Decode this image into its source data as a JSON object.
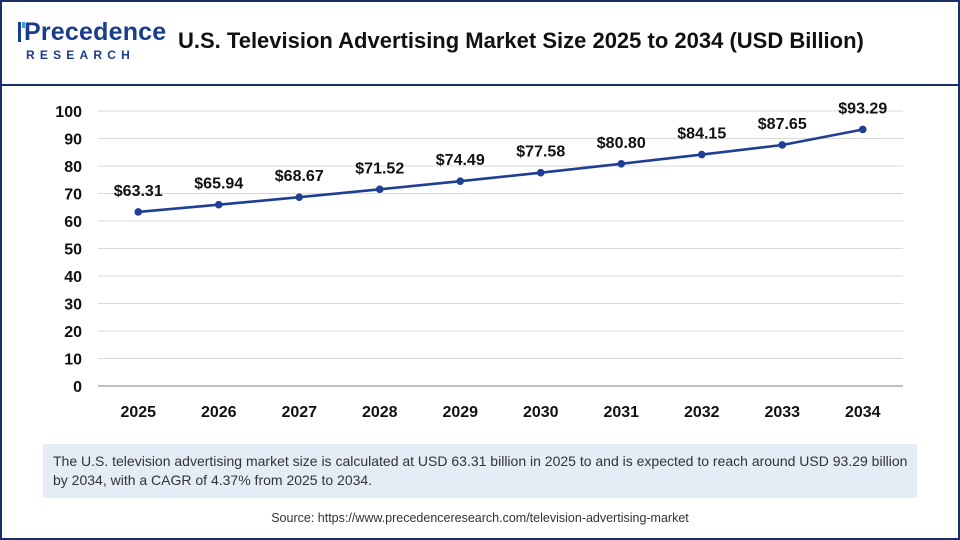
{
  "brand": {
    "name": "Precedence",
    "sub": "RESEARCH"
  },
  "header": {
    "title": "U.S. Television Advertising Market Size 2025 to 2034 (USD Billion)"
  },
  "colors": {
    "line": "#1f3f95",
    "marker": "#1f3f95",
    "frame": "#1a2f66",
    "grid": "#d9d9d9",
    "desc_bg": "#e4ecf6"
  },
  "chart_data": {
    "type": "line",
    "categories": [
      "2025",
      "2026",
      "2027",
      "2028",
      "2029",
      "2030",
      "2031",
      "2032",
      "2033",
      "2034"
    ],
    "values": [
      63.31,
      65.94,
      68.67,
      71.52,
      74.49,
      77.58,
      80.8,
      84.15,
      87.65,
      93.29
    ],
    "data_labels": [
      "$63.31",
      "$65.94",
      "$68.67",
      "$71.52",
      "$74.49",
      "$77.58",
      "$80.80",
      "$84.15",
      "$87.65",
      "$93.29"
    ],
    "ylim": [
      0,
      100
    ],
    "yticks": [
      0,
      10,
      20,
      30,
      40,
      50,
      60,
      70,
      80,
      90,
      100
    ],
    "ytick_labels": [
      "0",
      "10",
      "20",
      "30",
      "40",
      "50",
      "60",
      "70",
      "80",
      "90",
      "100"
    ],
    "grid": true,
    "xlabel": "",
    "ylabel": ""
  },
  "description": "The U.S. television advertising market size is calculated at USD 63.31 billion in 2025 to and is expected to reach around USD 93.29 billion by 2034, with a CAGR of 4.37% from 2025 to 2034.",
  "source": "Source: https://www.precedenceresearch.com/television-advertising-market"
}
